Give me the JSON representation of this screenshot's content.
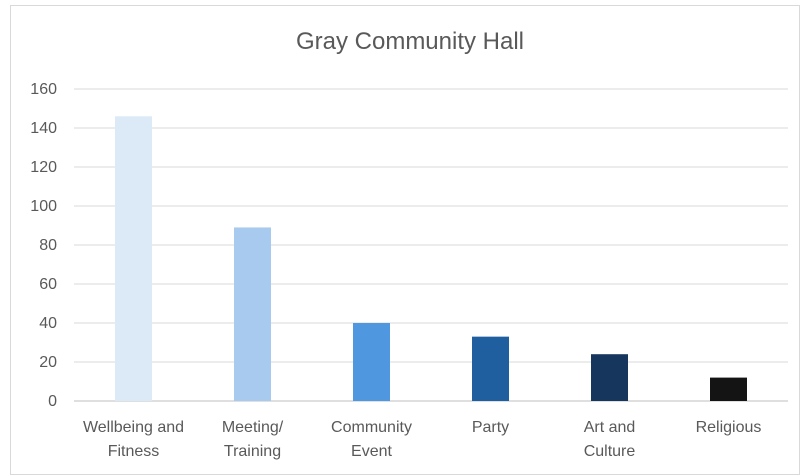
{
  "chart_data": {
    "type": "bar",
    "title": "Gray Community Hall",
    "xlabel": "",
    "ylabel": "",
    "categories": [
      [
        "Wellbeing and",
        "Fitness"
      ],
      [
        "Meeting/",
        "Training"
      ],
      [
        "Community",
        "Event"
      ],
      [
        "Party"
      ],
      [
        "Art and",
        "Culture"
      ],
      [
        "Religious"
      ]
    ],
    "values": [
      146,
      89,
      40,
      33,
      24,
      12
    ],
    "ylim": [
      0,
      160
    ],
    "yticks": [
      0,
      20,
      40,
      60,
      80,
      100,
      120,
      140,
      160
    ],
    "grid": true,
    "legend": "none",
    "bar_colors": [
      "#dce9f6",
      "#a7caee",
      "#4f98df",
      "#1f5fa0",
      "#17365d",
      "#141414"
    ],
    "gridline_color": "#d9d9d9",
    "axis_color": "#bfbfbf"
  }
}
